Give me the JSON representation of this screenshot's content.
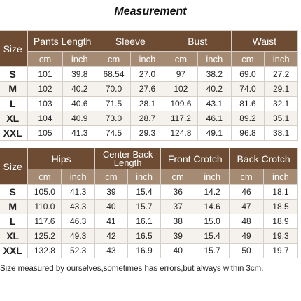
{
  "title": "Measurement",
  "table1": {
    "size_label": "Size",
    "groups": [
      "Pants Length",
      "Sleeve",
      "Bust",
      "Waist"
    ],
    "units": [
      "cm",
      "inch",
      "cm",
      "inch",
      "cm",
      "inch",
      "cm",
      "inch"
    ],
    "rows": [
      {
        "size": "S",
        "values": [
          "101",
          "39.8",
          "68.54",
          "27.0",
          "97",
          "38.2",
          "69.0",
          "27.2"
        ]
      },
      {
        "size": "M",
        "values": [
          "102",
          "40.2",
          "70.0",
          "27.6",
          "102",
          "40.2",
          "74.0",
          "29.1"
        ]
      },
      {
        "size": "L",
        "values": [
          "103",
          "40.6",
          "71.5",
          "28.1",
          "109.6",
          "43.1",
          "81.6",
          "32.1"
        ]
      },
      {
        "size": "XL",
        "values": [
          "104",
          "40.9",
          "73.0",
          "28.7",
          "117.2",
          "46.1",
          "89.2",
          "35.1"
        ]
      },
      {
        "size": "XXL",
        "values": [
          "105",
          "41.3",
          "74.5",
          "29.3",
          "124.8",
          "49.1",
          "96.8",
          "38.1"
        ]
      }
    ]
  },
  "table2": {
    "size_label": "Size",
    "groups": [
      "Hips",
      "Center Back Length",
      "Front Crotch",
      "Back Crotch"
    ],
    "units": [
      "cm",
      "inch",
      "cm",
      "inch",
      "cm",
      "inch",
      "cm",
      "inch"
    ],
    "rows": [
      {
        "size": "S",
        "values": [
          "105.0",
          "41.3",
          "39",
          "15.4",
          "36",
          "14.2",
          "46",
          "18.1"
        ]
      },
      {
        "size": "M",
        "values": [
          "110.0",
          "43.3",
          "40",
          "15.7",
          "37",
          "14.6",
          "47",
          "18.5"
        ]
      },
      {
        "size": "L",
        "values": [
          "117.6",
          "46.3",
          "41",
          "16.1",
          "38",
          "15.0",
          "48",
          "18.9"
        ]
      },
      {
        "size": "XL",
        "values": [
          "125.2",
          "49.3",
          "42",
          "16.5",
          "39",
          "15.4",
          "49",
          "19.3"
        ]
      },
      {
        "size": "XXL",
        "values": [
          "132.8",
          "52.3",
          "43",
          "16.9",
          "40",
          "15.7",
          "50",
          "19.7"
        ]
      }
    ]
  },
  "note": "Size measured by ourselves,sometimes has errors,but always within 3cm."
}
